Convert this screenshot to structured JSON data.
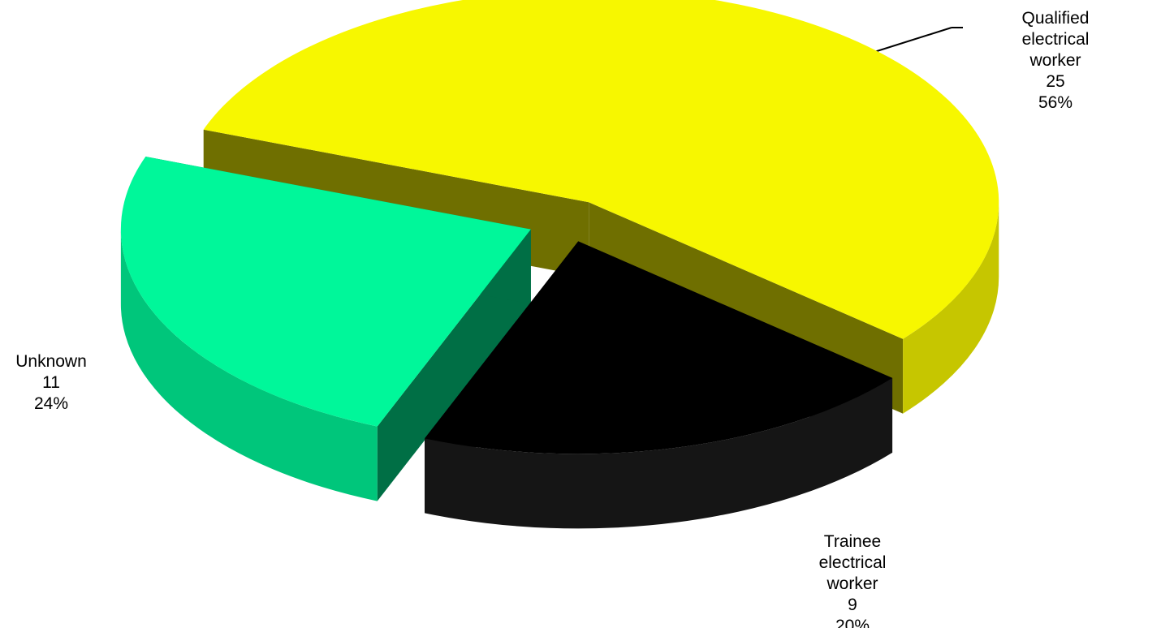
{
  "chart_data": {
    "type": "pie",
    "categories": [
      "Qualified electrical worker",
      "Trainee electrical worker",
      "Unknown"
    ],
    "values": [
      25,
      9,
      11
    ],
    "percent_labels": [
      "56%",
      "20%",
      "24%"
    ],
    "colors": [
      "#f7f700",
      "#000000",
      "#00f79a"
    ]
  }
}
